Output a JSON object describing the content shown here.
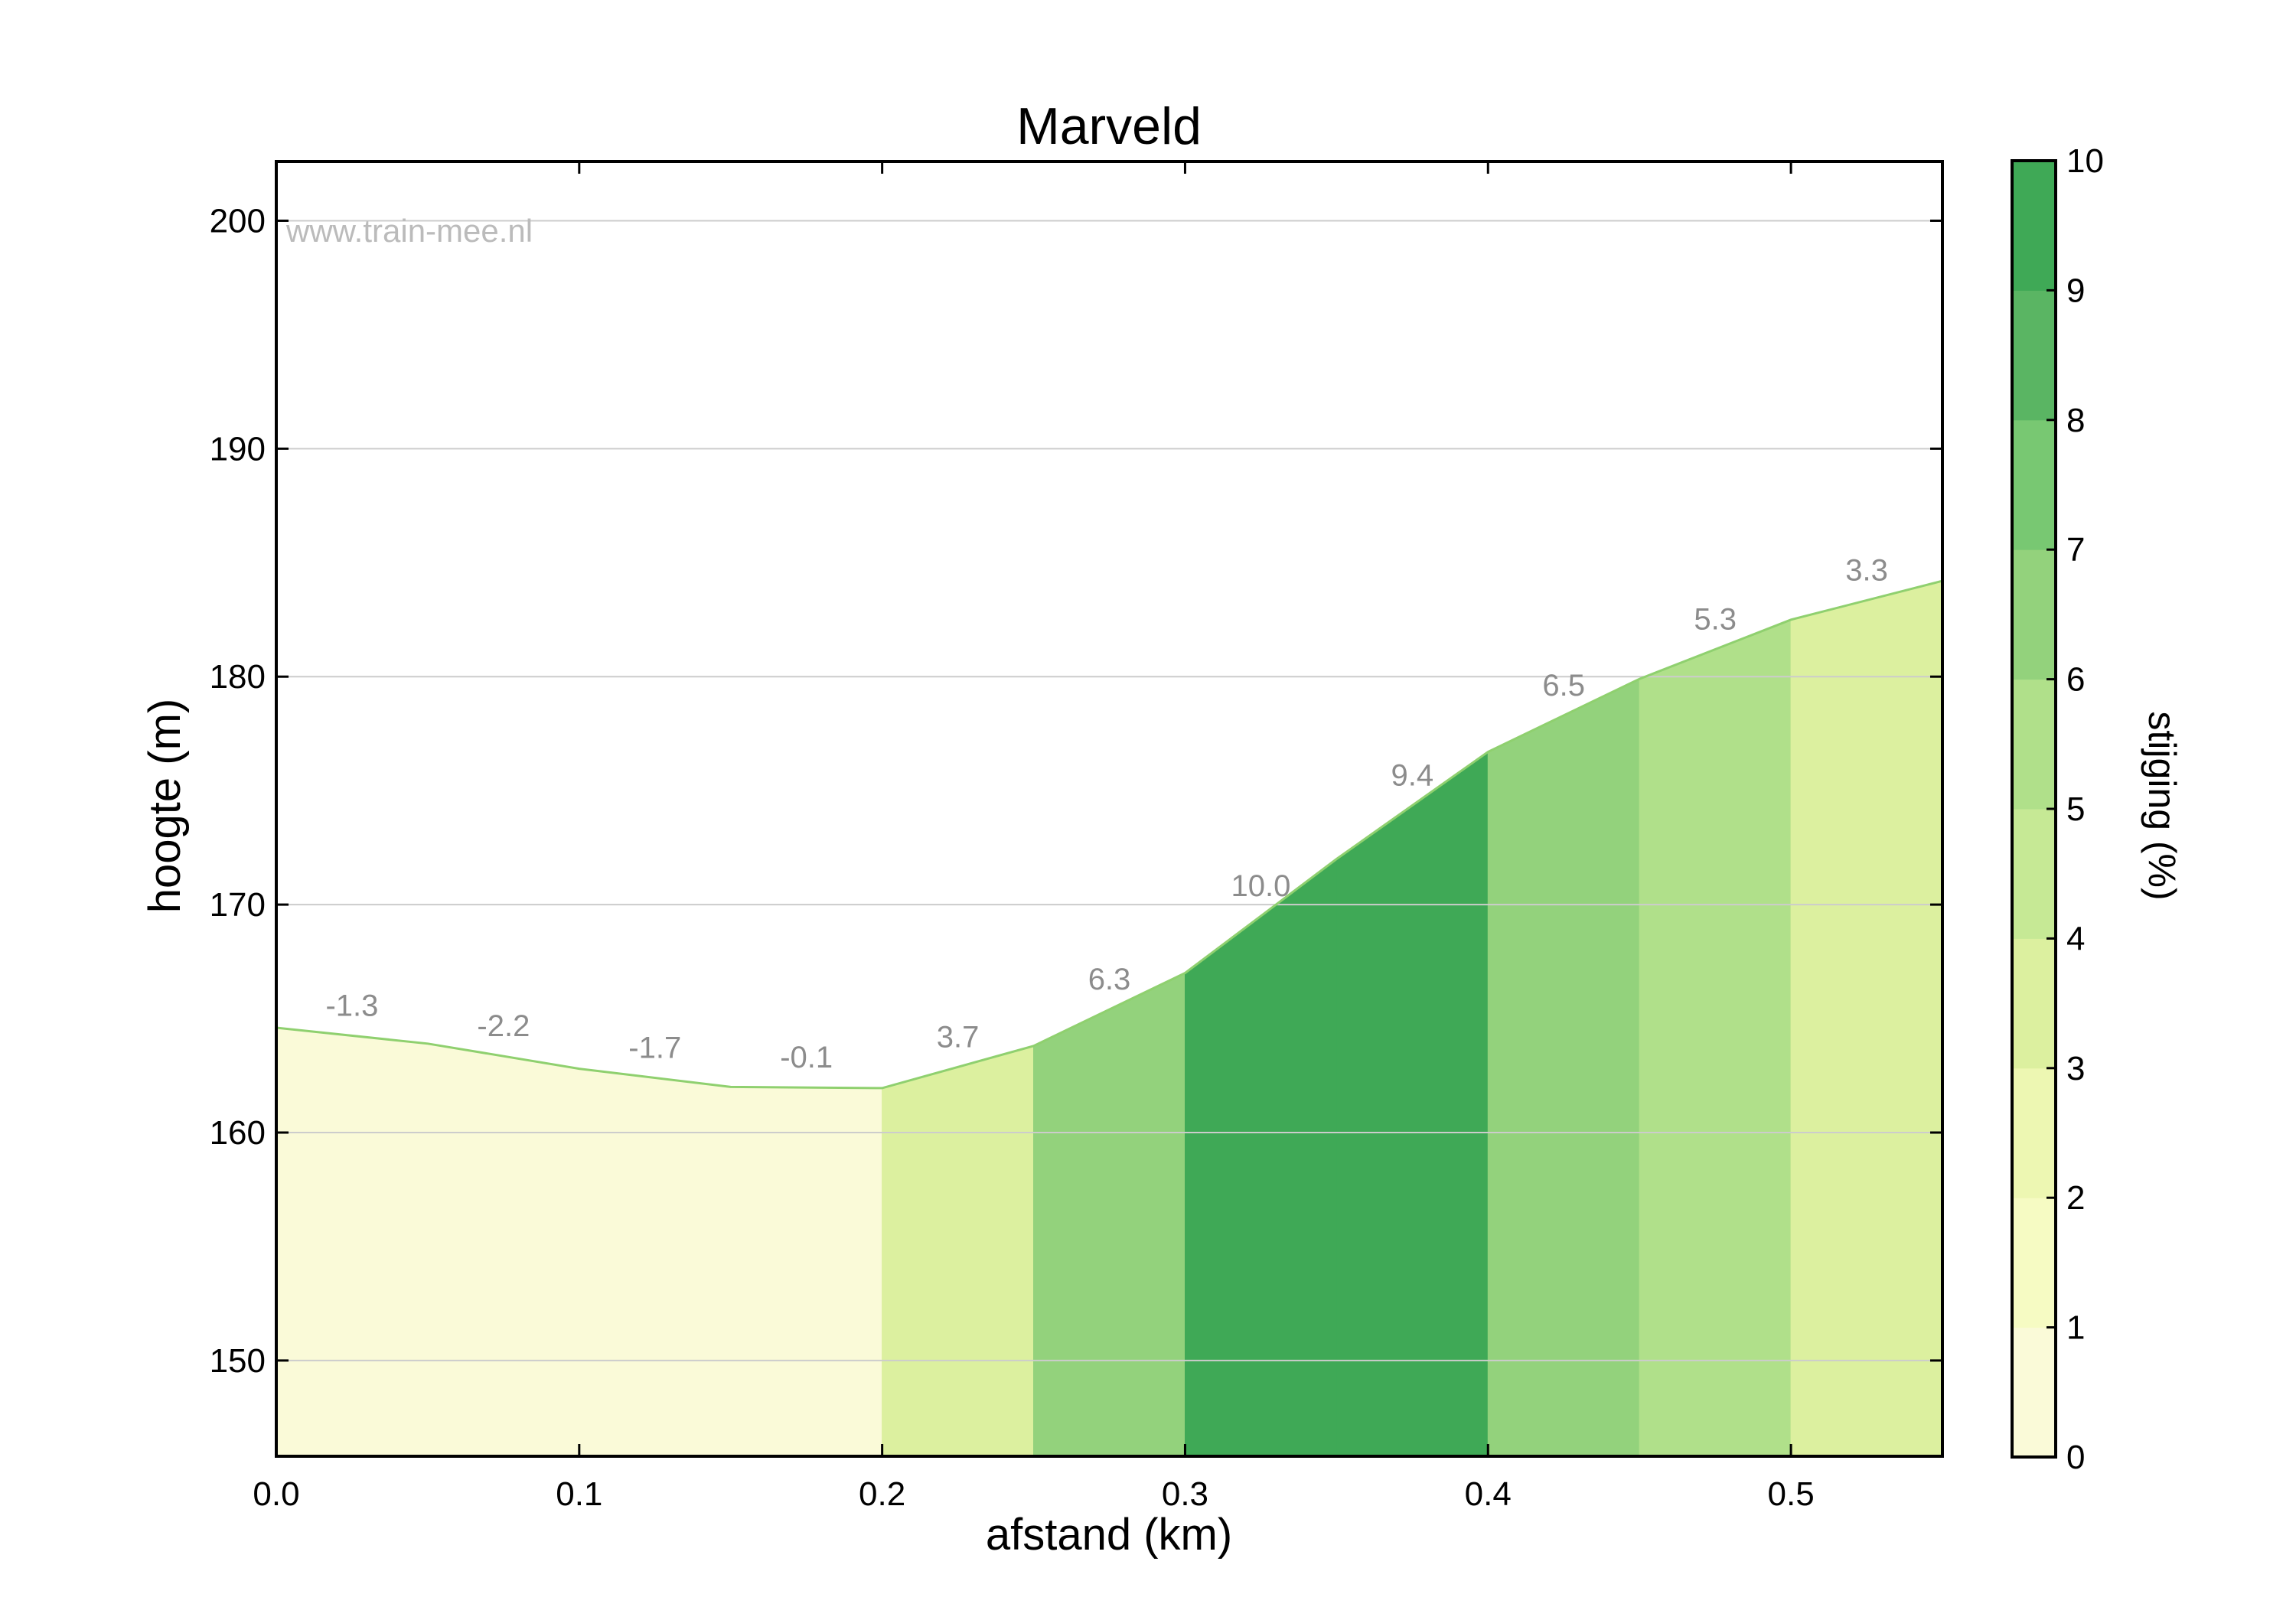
{
  "chart_data": {
    "type": "area",
    "title": "Marveld",
    "watermark": "www.train-mee.nl",
    "xlabel": "afstand (km)",
    "ylabel": "hoogte (m)",
    "xlim": [
      0.0,
      0.55
    ],
    "ylim": [
      145.8,
      202.6
    ],
    "x_ticks": [
      0.0,
      0.1,
      0.2,
      0.3,
      0.4,
      0.5
    ],
    "x_tick_labels": [
      "0.0",
      "0.1",
      "0.2",
      "0.3",
      "0.4",
      "0.5"
    ],
    "y_ticks": [
      150,
      160,
      170,
      180,
      190,
      200
    ],
    "y_tick_labels": [
      "150",
      "160",
      "170",
      "180",
      "190",
      "200"
    ],
    "grid": "horizontal",
    "profile": [
      {
        "x": 0.0,
        "y": 164.6
      },
      {
        "x": 0.05,
        "y": 163.9
      },
      {
        "x": 0.1,
        "y": 162.8
      },
      {
        "x": 0.15,
        "y": 162.0
      },
      {
        "x": 0.2,
        "y": 161.95
      },
      {
        "x": 0.25,
        "y": 163.8
      },
      {
        "x": 0.3,
        "y": 167.0
      },
      {
        "x": 0.35,
        "y": 172.0
      },
      {
        "x": 0.4,
        "y": 176.7
      },
      {
        "x": 0.45,
        "y": 179.9
      },
      {
        "x": 0.5,
        "y": 182.5
      },
      {
        "x": 0.55,
        "y": 184.2
      }
    ],
    "segments": [
      {
        "x0": 0.0,
        "x1": 0.05,
        "gradient": -1.3,
        "label": "-1.3"
      },
      {
        "x0": 0.05,
        "x1": 0.1,
        "gradient": -2.2,
        "label": "-2.2"
      },
      {
        "x0": 0.1,
        "x1": 0.15,
        "gradient": -1.7,
        "label": "-1.7"
      },
      {
        "x0": 0.15,
        "x1": 0.2,
        "gradient": -0.1,
        "label": "-0.1"
      },
      {
        "x0": 0.2,
        "x1": 0.25,
        "gradient": 3.7,
        "label": "3.7"
      },
      {
        "x0": 0.25,
        "x1": 0.3,
        "gradient": 6.3,
        "label": "6.3"
      },
      {
        "x0": 0.3,
        "x1": 0.35,
        "gradient": 10.0,
        "label": "10.0"
      },
      {
        "x0": 0.35,
        "x1": 0.4,
        "gradient": 9.4,
        "label": "9.4"
      },
      {
        "x0": 0.4,
        "x1": 0.45,
        "gradient": 6.5,
        "label": "6.5"
      },
      {
        "x0": 0.45,
        "x1": 0.5,
        "gradient": 5.3,
        "label": "5.3"
      },
      {
        "x0": 0.5,
        "x1": 0.55,
        "gradient": 3.3,
        "label": "3.3"
      }
    ],
    "colorbar": {
      "label": "stijging (%)",
      "range": [
        0,
        10
      ],
      "ticks": [
        0,
        1,
        2,
        3,
        4,
        5,
        6,
        7,
        8,
        9,
        10
      ],
      "tick_labels": [
        "0",
        "1",
        "2",
        "3",
        "4",
        "5",
        "6",
        "7",
        "8",
        "9",
        "10"
      ],
      "colors": [
        "#fafad8",
        "#f6fbc3",
        "#edf7b2",
        "#dcf09f",
        "#c6e995",
        "#b0e08a",
        "#93d27c",
        "#78c872",
        "#5ab563",
        "#3fa956"
      ]
    },
    "colors": {
      "outline": "#8fd06f",
      "grid": "#cccccc",
      "segment_label": "#8c8c8c",
      "watermark": "#bbbbbb"
    }
  }
}
